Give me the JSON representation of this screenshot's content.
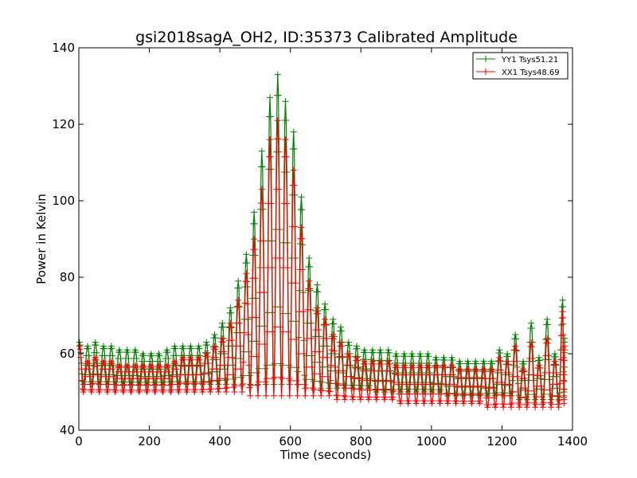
{
  "chart_data": {
    "type": "line",
    "title": "gsi2018sagA_OH2, ID:35373 Calibrated Amplitude",
    "xlabel": "Time (seconds)",
    "ylabel": "Power in Kelvin",
    "xlim": [
      0,
      1400
    ],
    "ylim": [
      40,
      140
    ],
    "xticks": [
      0,
      200,
      400,
      600,
      800,
      1000,
      1200,
      1400
    ],
    "yticks": [
      40,
      60,
      80,
      100,
      120,
      140
    ],
    "grid": false,
    "legend_position": "top-right",
    "marker": "+",
    "series": [
      {
        "name": "YY1 Tsys51.21",
        "color": "#008000",
        "peaks": [
          [
            2,
            63
          ],
          [
            25,
            62
          ],
          [
            47,
            63
          ],
          [
            70,
            62
          ],
          [
            92,
            62
          ],
          [
            115,
            61
          ],
          [
            137,
            61
          ],
          [
            160,
            61
          ],
          [
            182,
            60
          ],
          [
            205,
            60
          ],
          [
            227,
            60
          ],
          [
            250,
            61
          ],
          [
            272,
            62
          ],
          [
            295,
            62
          ],
          [
            317,
            62
          ],
          [
            340,
            62
          ],
          [
            362,
            63
          ],
          [
            385,
            65
          ],
          [
            407,
            68
          ],
          [
            430,
            72
          ],
          [
            452,
            79
          ],
          [
            475,
            86
          ],
          [
            497,
            97
          ],
          [
            519,
            113
          ],
          [
            542,
            127
          ],
          [
            564,
            133
          ],
          [
            586,
            126
          ],
          [
            609,
            118
          ],
          [
            631,
            101
          ],
          [
            653,
            85
          ],
          [
            676,
            78
          ],
          [
            698,
            73
          ],
          [
            721,
            69
          ],
          [
            743,
            67
          ],
          [
            765,
            63
          ],
          [
            788,
            62
          ],
          [
            810,
            61
          ],
          [
            833,
            61
          ],
          [
            855,
            61
          ],
          [
            878,
            61
          ],
          [
            900,
            60
          ],
          [
            923,
            60
          ],
          [
            945,
            60
          ],
          [
            968,
            60
          ],
          [
            990,
            60
          ],
          [
            1013,
            59
          ],
          [
            1035,
            59
          ],
          [
            1058,
            59
          ],
          [
            1080,
            58
          ],
          [
            1103,
            58
          ],
          [
            1125,
            58
          ],
          [
            1148,
            58
          ],
          [
            1170,
            58
          ],
          [
            1193,
            61
          ],
          [
            1215,
            60
          ],
          [
            1238,
            65
          ],
          [
            1260,
            58
          ],
          [
            1283,
            68
          ],
          [
            1305,
            59
          ],
          [
            1328,
            69
          ],
          [
            1350,
            60
          ],
          [
            1372,
            74
          ],
          [
            1378,
            64
          ]
        ],
        "troughs": [
          [
            13,
            52
          ],
          [
            36,
            52
          ],
          [
            58,
            52
          ],
          [
            81,
            52
          ],
          [
            103,
            52
          ],
          [
            126,
            52
          ],
          [
            148,
            52
          ],
          [
            171,
            52
          ],
          [
            193,
            52
          ],
          [
            216,
            52
          ],
          [
            238,
            52
          ],
          [
            261,
            52
          ],
          [
            283,
            52
          ],
          [
            306,
            52
          ],
          [
            328,
            52
          ],
          [
            351,
            52
          ],
          [
            373,
            52
          ],
          [
            396,
            52
          ],
          [
            418,
            52
          ],
          [
            441,
            52
          ],
          [
            463,
            52
          ],
          [
            486,
            52
          ],
          [
            508,
            52
          ],
          [
            531,
            52
          ],
          [
            553,
            52
          ],
          [
            575,
            52
          ],
          [
            598,
            52
          ],
          [
            620,
            52
          ],
          [
            642,
            51
          ],
          [
            665,
            51
          ],
          [
            687,
            51
          ],
          [
            710,
            51
          ],
          [
            732,
            51
          ],
          [
            754,
            51
          ],
          [
            777,
            51
          ],
          [
            799,
            51
          ],
          [
            822,
            51
          ],
          [
            844,
            50
          ],
          [
            867,
            50
          ],
          [
            889,
            50
          ],
          [
            912,
            50
          ],
          [
            934,
            50
          ],
          [
            957,
            50
          ],
          [
            979,
            50
          ],
          [
            1001,
            50
          ],
          [
            1024,
            50
          ],
          [
            1046,
            49
          ],
          [
            1069,
            49
          ],
          [
            1091,
            49
          ],
          [
            1114,
            49
          ],
          [
            1136,
            49
          ],
          [
            1159,
            49
          ],
          [
            1181,
            49
          ],
          [
            1204,
            49
          ],
          [
            1226,
            49
          ],
          [
            1249,
            48
          ],
          [
            1271,
            48
          ],
          [
            1294,
            48
          ],
          [
            1316,
            48
          ],
          [
            1339,
            48
          ],
          [
            1361,
            48
          ],
          [
            1376,
            49
          ]
        ]
      },
      {
        "name": "XX1 Tsys48.69",
        "color": "#ff0000",
        "peaks": [
          [
            2,
            62
          ],
          [
            25,
            58
          ],
          [
            47,
            59
          ],
          [
            70,
            58
          ],
          [
            92,
            58
          ],
          [
            115,
            57
          ],
          [
            137,
            57
          ],
          [
            160,
            57
          ],
          [
            182,
            57
          ],
          [
            205,
            57
          ],
          [
            227,
            57
          ],
          [
            250,
            57
          ],
          [
            272,
            58
          ],
          [
            295,
            59
          ],
          [
            317,
            59
          ],
          [
            340,
            59
          ],
          [
            362,
            60
          ],
          [
            385,
            62
          ],
          [
            407,
            64
          ],
          [
            430,
            68
          ],
          [
            452,
            74
          ],
          [
            475,
            81
          ],
          [
            497,
            90
          ],
          [
            519,
            103
          ],
          [
            542,
            116
          ],
          [
            564,
            121
          ],
          [
            586,
            116
          ],
          [
            609,
            108
          ],
          [
            631,
            93
          ],
          [
            653,
            79
          ],
          [
            676,
            72
          ],
          [
            698,
            69
          ],
          [
            721,
            65
          ],
          [
            743,
            63
          ],
          [
            765,
            60
          ],
          [
            788,
            59
          ],
          [
            810,
            58
          ],
          [
            833,
            58
          ],
          [
            855,
            58
          ],
          [
            878,
            58
          ],
          [
            900,
            57
          ],
          [
            923,
            57
          ],
          [
            945,
            57
          ],
          [
            968,
            57
          ],
          [
            990,
            57
          ],
          [
            1013,
            57
          ],
          [
            1035,
            57
          ],
          [
            1058,
            57
          ],
          [
            1080,
            56
          ],
          [
            1103,
            56
          ],
          [
            1125,
            56
          ],
          [
            1148,
            56
          ],
          [
            1170,
            56
          ],
          [
            1193,
            59
          ],
          [
            1215,
            58
          ],
          [
            1238,
            62
          ],
          [
            1260,
            56
          ],
          [
            1283,
            63
          ],
          [
            1305,
            57
          ],
          [
            1328,
            64
          ],
          [
            1350,
            58
          ],
          [
            1372,
            71
          ],
          [
            1378,
            62
          ]
        ],
        "troughs": [
          [
            13,
            50
          ],
          [
            36,
            50
          ],
          [
            58,
            50
          ],
          [
            81,
            50
          ],
          [
            103,
            50
          ],
          [
            126,
            50
          ],
          [
            148,
            50
          ],
          [
            171,
            50
          ],
          [
            193,
            50
          ],
          [
            216,
            50
          ],
          [
            238,
            50
          ],
          [
            261,
            50
          ],
          [
            283,
            50
          ],
          [
            306,
            50
          ],
          [
            328,
            50
          ],
          [
            351,
            50
          ],
          [
            373,
            50
          ],
          [
            396,
            50
          ],
          [
            418,
            50
          ],
          [
            441,
            50
          ],
          [
            463,
            50
          ],
          [
            486,
            49
          ],
          [
            508,
            49
          ],
          [
            531,
            49
          ],
          [
            553,
            49
          ],
          [
            575,
            49
          ],
          [
            598,
            49
          ],
          [
            620,
            49
          ],
          [
            642,
            49
          ],
          [
            665,
            49
          ],
          [
            687,
            49
          ],
          [
            710,
            49
          ],
          [
            732,
            48
          ],
          [
            754,
            48
          ],
          [
            777,
            48
          ],
          [
            799,
            48
          ],
          [
            822,
            48
          ],
          [
            844,
            48
          ],
          [
            867,
            48
          ],
          [
            889,
            48
          ],
          [
            912,
            47
          ],
          [
            934,
            47
          ],
          [
            957,
            47
          ],
          [
            979,
            47
          ],
          [
            1001,
            47
          ],
          [
            1024,
            47
          ],
          [
            1046,
            47
          ],
          [
            1069,
            47
          ],
          [
            1091,
            47
          ],
          [
            1114,
            47
          ],
          [
            1136,
            47
          ],
          [
            1159,
            46
          ],
          [
            1181,
            46
          ],
          [
            1204,
            46
          ],
          [
            1226,
            46
          ],
          [
            1249,
            46
          ],
          [
            1271,
            46
          ],
          [
            1294,
            46
          ],
          [
            1316,
            46
          ],
          [
            1339,
            46
          ],
          [
            1361,
            46
          ],
          [
            1376,
            47
          ]
        ]
      }
    ]
  }
}
